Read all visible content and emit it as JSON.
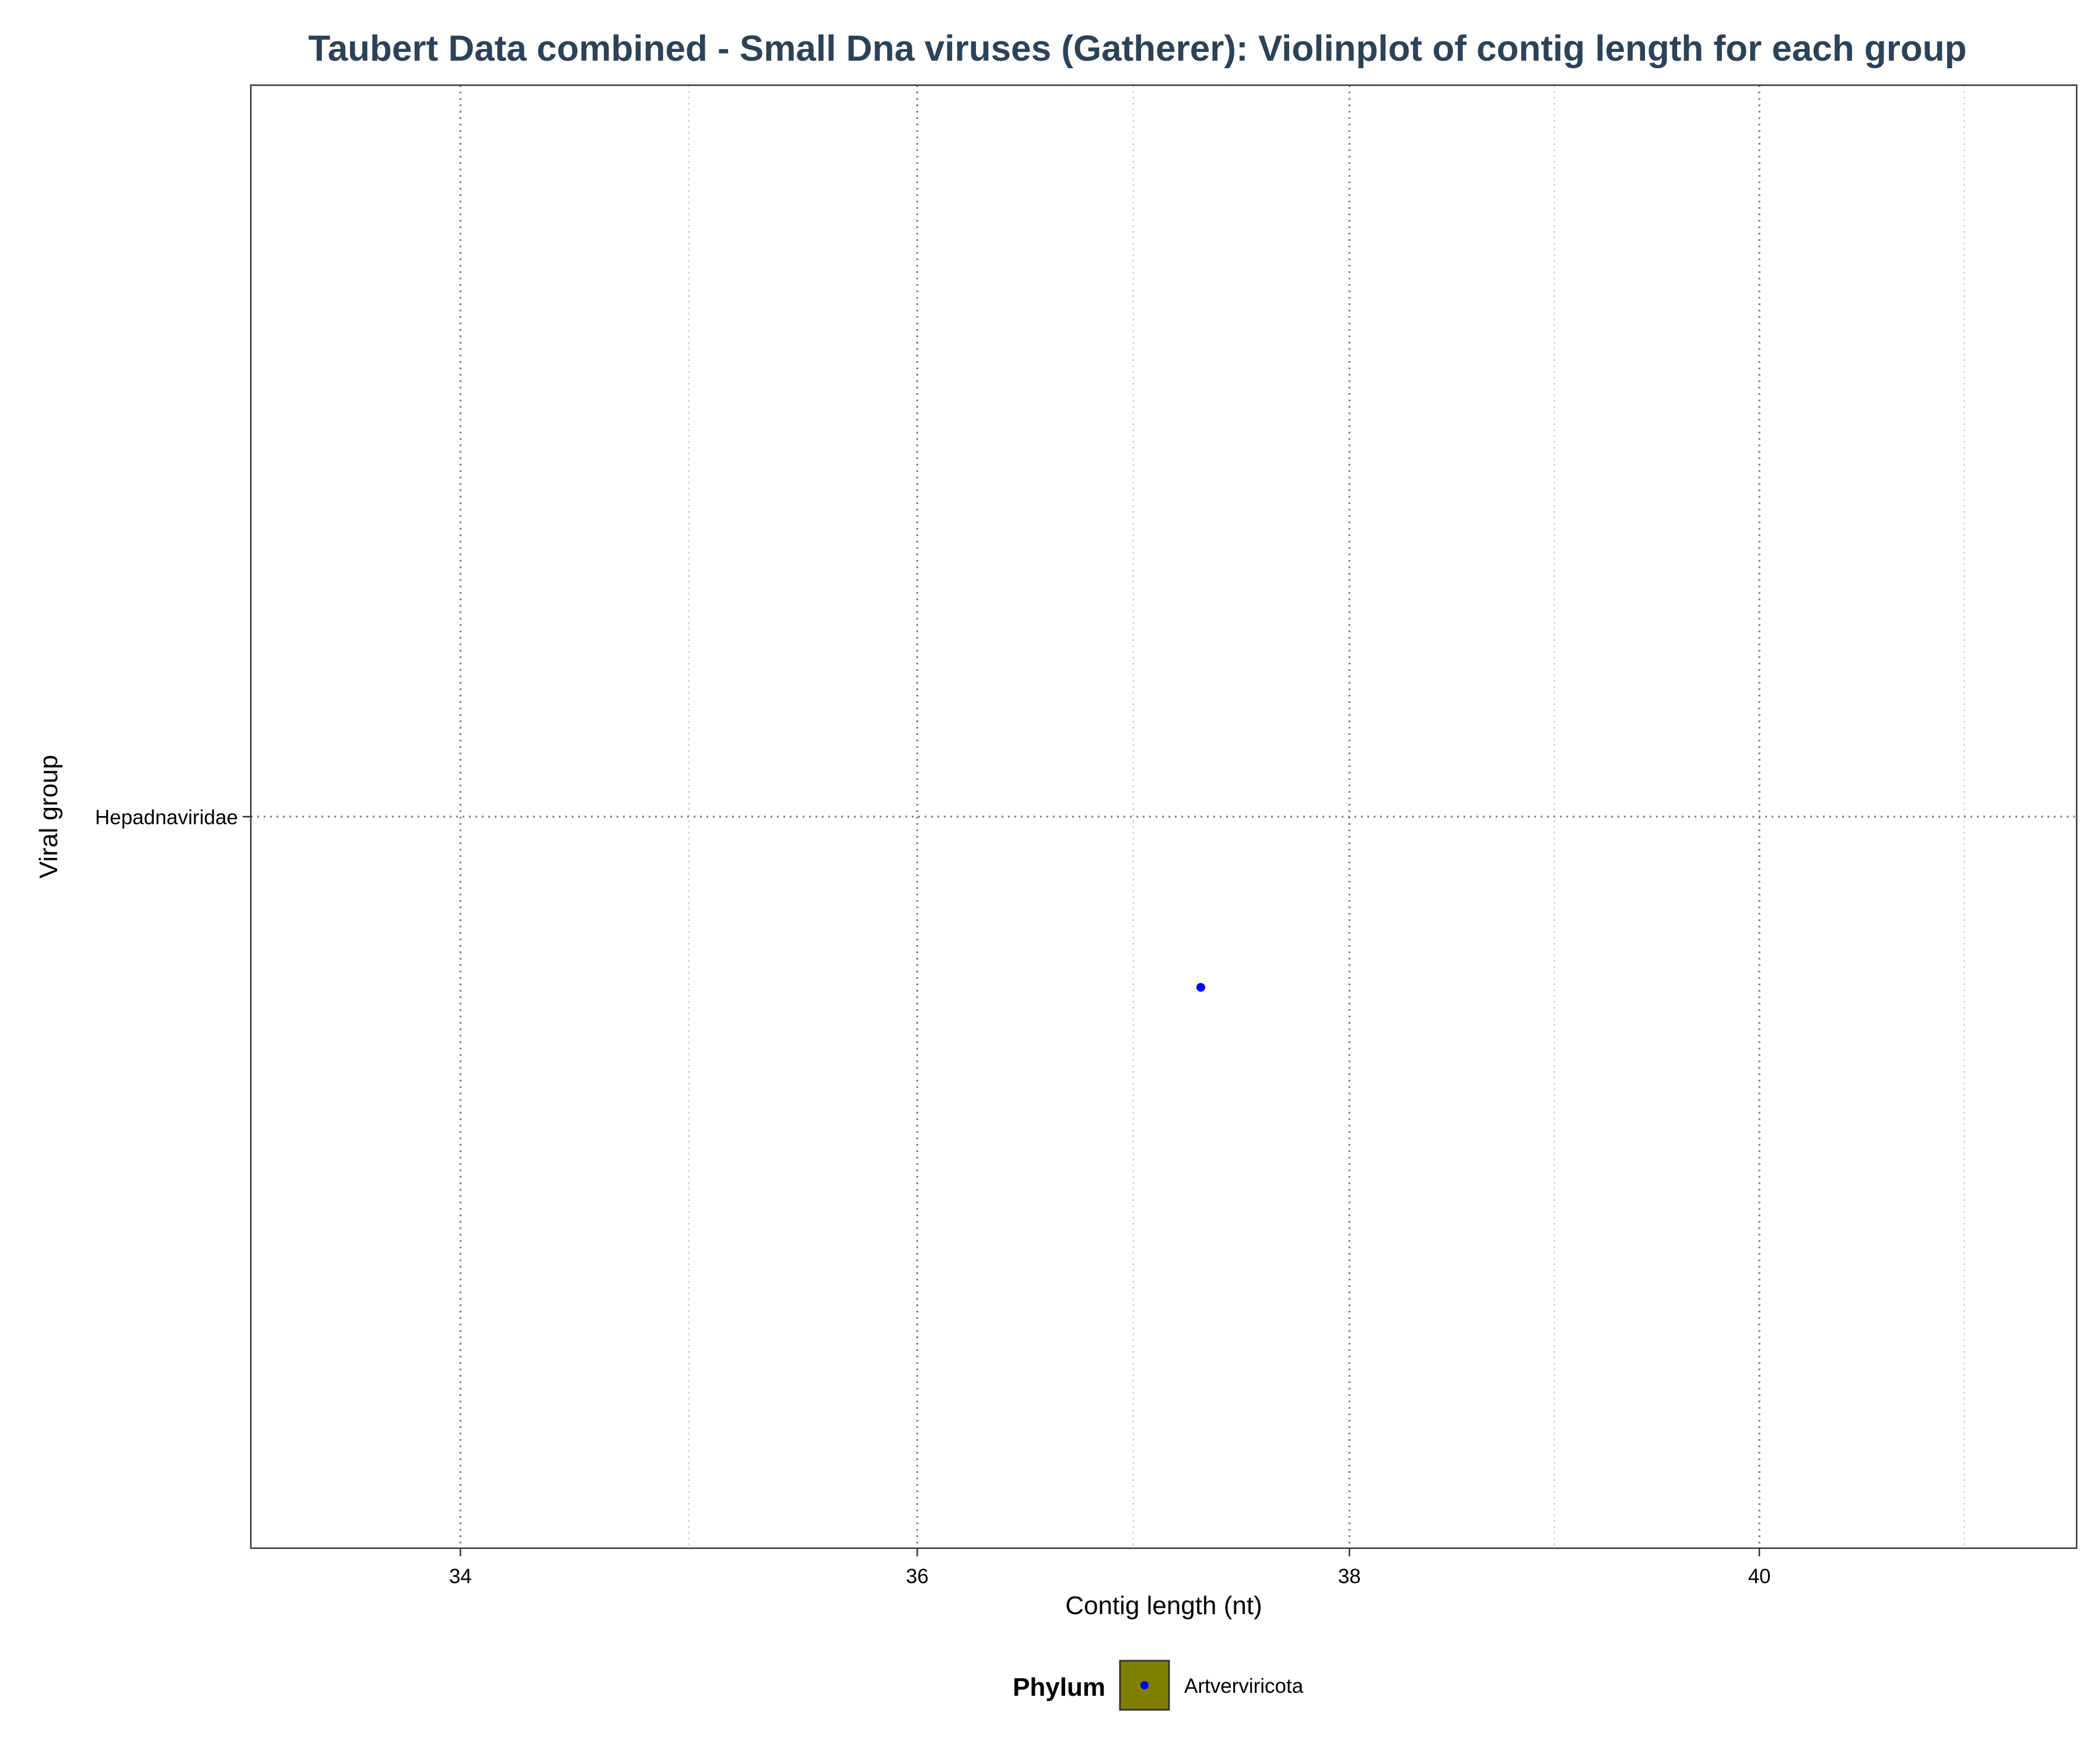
{
  "chart_data": {
    "type": "scatter",
    "title": "Taubert Data combined - Small Dna viruses (Gatherer): Violinplot of contig length for each group",
    "xlabel": "Contig length (nt)",
    "ylabel": "Viral group",
    "xlim": [
      33.12,
      41.62
    ],
    "x_ticks": [
      34,
      36,
      38,
      40
    ],
    "x_tick_labels": [
      "34",
      "36",
      "38",
      "40"
    ],
    "x_scale": "log",
    "categories": [
      "Hepadnaviridae"
    ],
    "grid": true,
    "legend": {
      "title": "Phylum",
      "position": "bottom",
      "entries": [
        {
          "label": "Artverviricota",
          "fill": "#808000",
          "point_color": "#0000ff"
        }
      ]
    },
    "series": [
      {
        "name": "Artverviricota",
        "color": "#0000ff",
        "points": [
          {
            "category": "Hepadnaviridae",
            "x": 37.3,
            "y_offset": -0.14
          }
        ]
      }
    ]
  }
}
